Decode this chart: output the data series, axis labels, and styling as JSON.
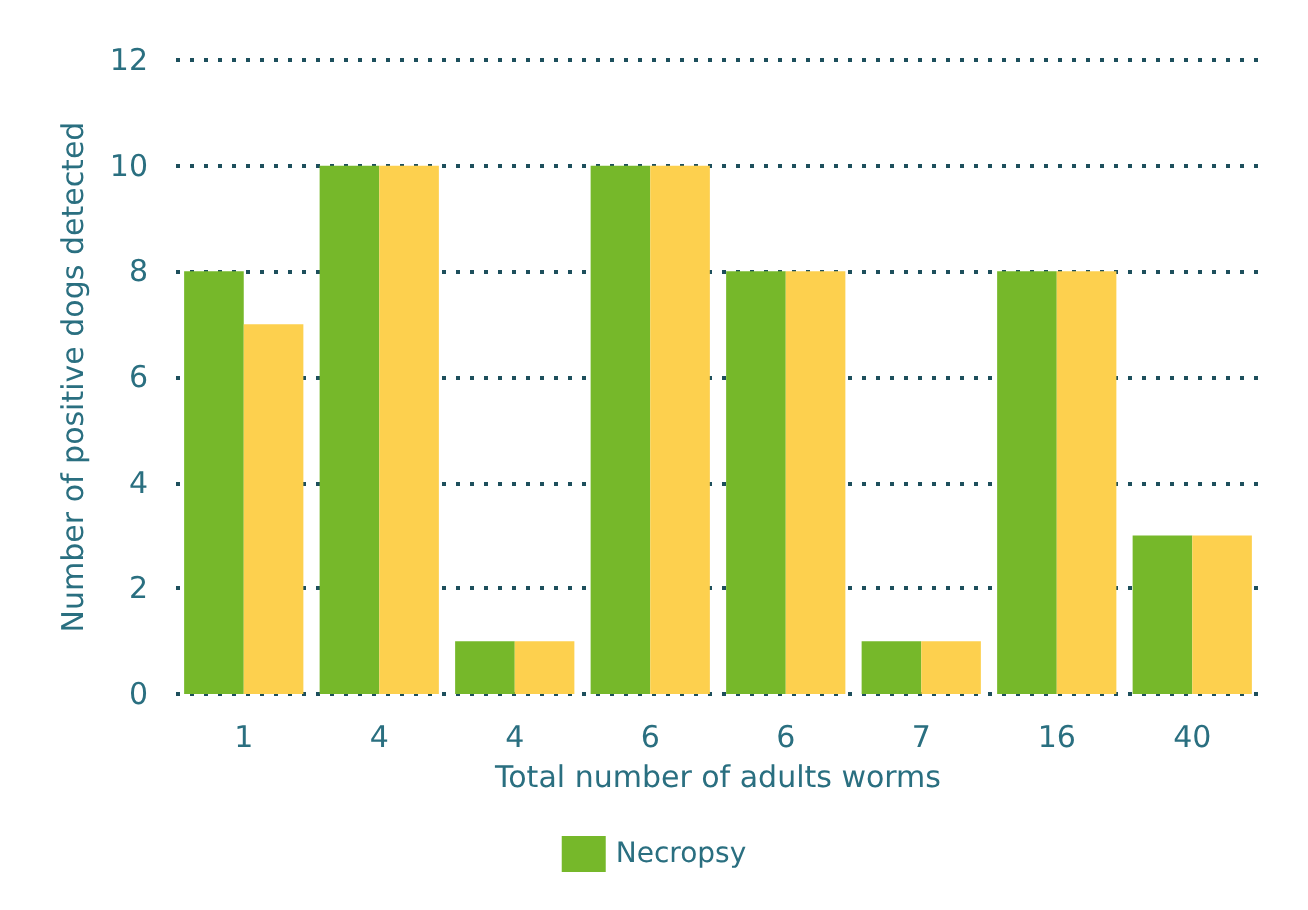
{
  "chart_data": {
    "type": "bar",
    "xlabel": "Total number of adults worms",
    "ylabel": "Number of positive dogs detected",
    "categories": [
      "1",
      "4",
      "4",
      "6",
      "6",
      "7",
      "16",
      "40"
    ],
    "series": [
      {
        "name": "Necropsy",
        "color": "#76b82a",
        "values": [
          8,
          10,
          1,
          10,
          8,
          1,
          8,
          3
        ]
      },
      {
        "color": "#fdd04e",
        "values": [
          7,
          10,
          1,
          10,
          8,
          1,
          8,
          3
        ]
      }
    ],
    "ylim": [
      0,
      12
    ],
    "yticks": [
      0,
      2,
      4,
      6,
      8,
      10,
      12
    ],
    "grid": "y",
    "legend": "bottom"
  }
}
